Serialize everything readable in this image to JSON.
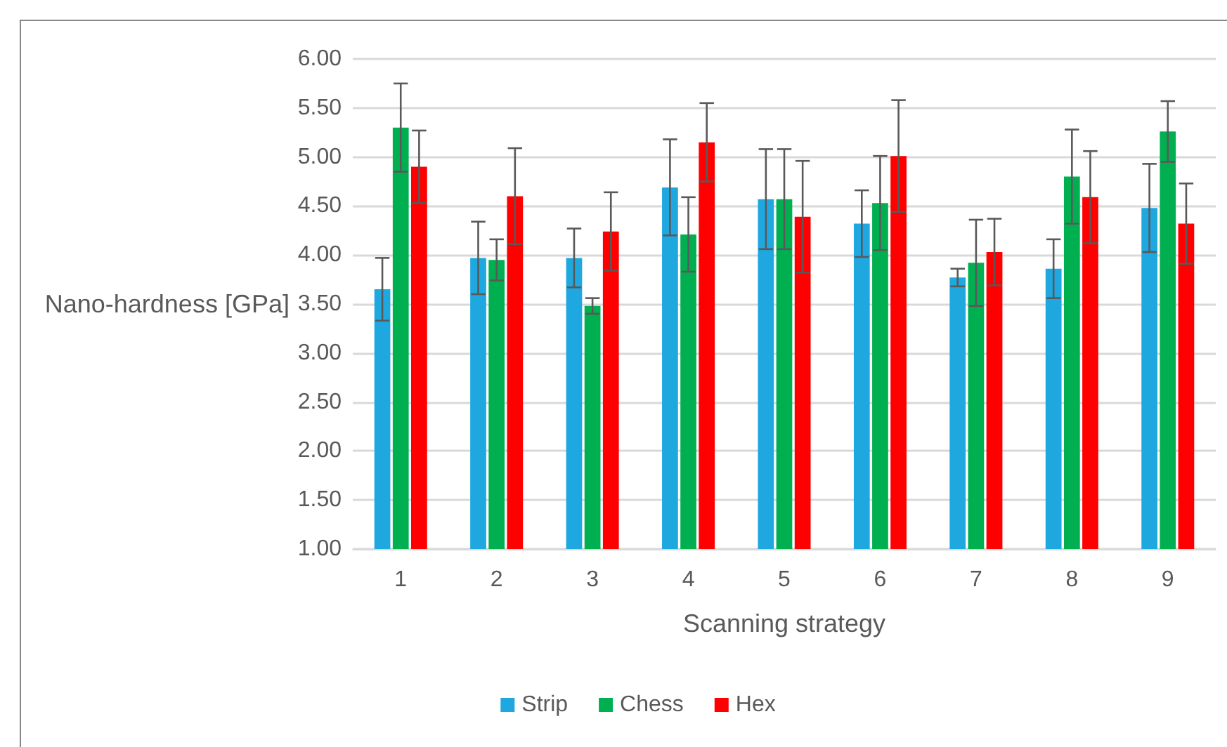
{
  "chart_data": {
    "type": "bar",
    "xlabel": "Scanning strategy",
    "ylabel": "Nano-hardness [GPa]",
    "categories": [
      "1",
      "2",
      "3",
      "4",
      "5",
      "6",
      "7",
      "8",
      "9"
    ],
    "series": [
      {
        "name": "Strip",
        "color": "#1fa8e0",
        "values": [
          3.65,
          3.97,
          3.97,
          4.69,
          4.57,
          4.32,
          3.77,
          3.86,
          4.48
        ],
        "errors": [
          0.32,
          0.37,
          0.3,
          0.49,
          0.51,
          0.34,
          0.09,
          0.3,
          0.45
        ]
      },
      {
        "name": "Chess",
        "color": "#00b050",
        "values": [
          5.3,
          3.95,
          3.48,
          4.21,
          4.57,
          4.53,
          3.92,
          4.8,
          5.26
        ],
        "errors": [
          0.45,
          0.21,
          0.08,
          0.38,
          0.51,
          0.48,
          0.44,
          0.48,
          0.31
        ]
      },
      {
        "name": "Hex",
        "color": "#ff0000",
        "values": [
          4.9,
          4.6,
          4.24,
          5.15,
          4.39,
          5.01,
          4.03,
          4.59,
          4.32
        ],
        "errors": [
          0.37,
          0.49,
          0.4,
          0.4,
          0.57,
          0.57,
          0.34,
          0.47,
          0.41
        ]
      }
    ],
    "ylim": [
      1,
      6
    ],
    "yticks": [
      {
        "value": 1,
        "label": "1.00"
      },
      {
        "value": 1.5,
        "label": "1.50"
      },
      {
        "value": 2,
        "label": "2.00"
      },
      {
        "value": 2.5,
        "label": "2.50"
      },
      {
        "value": 3,
        "label": "3.00"
      },
      {
        "value": 3.5,
        "label": "3.50"
      },
      {
        "value": 4,
        "label": "4.00"
      },
      {
        "value": 4.5,
        "label": "4.50"
      },
      {
        "value": 5,
        "label": "5.00"
      },
      {
        "value": 5.5,
        "label": "5.50"
      },
      {
        "value": 6,
        "label": "6.00"
      }
    ],
    "grid": "y",
    "legend": "bottom"
  }
}
